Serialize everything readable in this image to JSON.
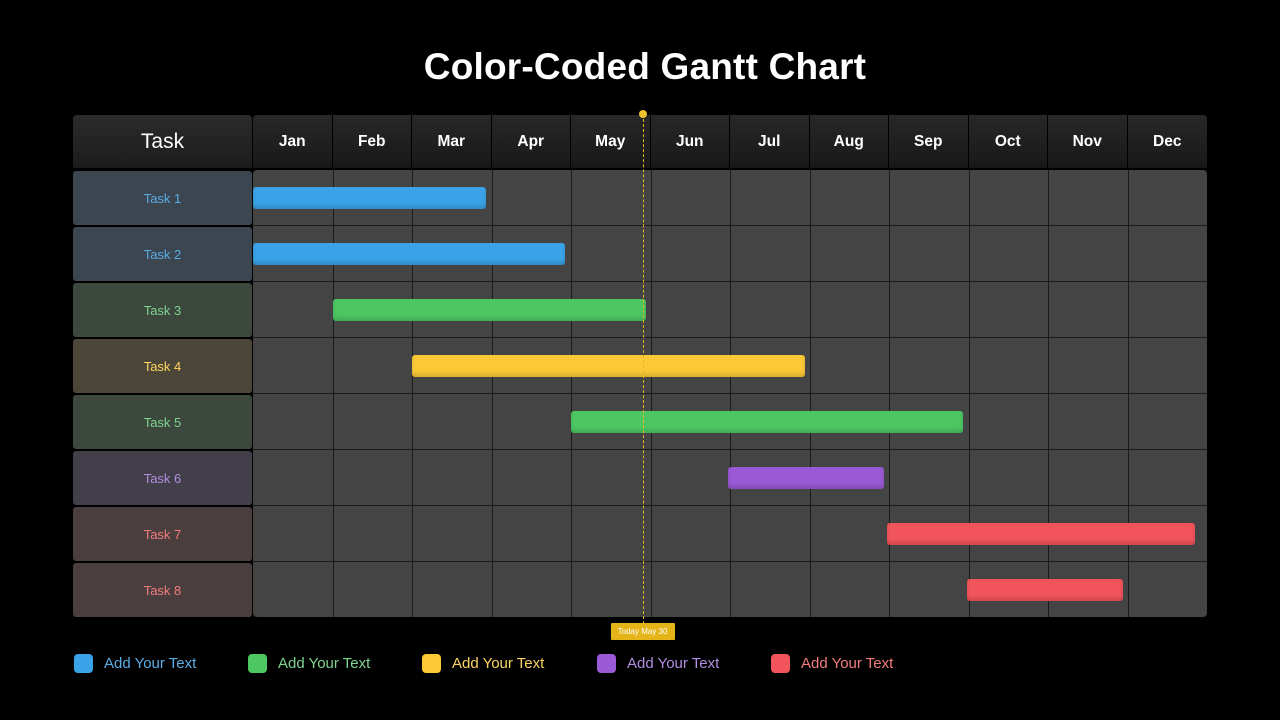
{
  "chart_data": {
    "type": "gantt",
    "title": "Color-Coded Gantt Chart",
    "task_column_header": "Task",
    "months": [
      "Jan",
      "Feb",
      "Mar",
      "Apr",
      "May",
      "Jun",
      "Jul",
      "Aug",
      "Sep",
      "Oct",
      "Nov",
      "Dec"
    ],
    "x_unit": "month index (0 = start of Jan, 12 = end of Dec)",
    "tasks": [
      {
        "name": "Task 1",
        "start": 0.0,
        "end": 2.93,
        "color": "#3aa3e8",
        "text_color": "#5aaee6",
        "label_bg": "#3b4650"
      },
      {
        "name": "Task 2",
        "start": 0.0,
        "end": 3.93,
        "color": "#3aa3e8",
        "text_color": "#5aaee6",
        "label_bg": "#3b4650"
      },
      {
        "name": "Task 3",
        "start": 1.0,
        "end": 4.94,
        "color": "#4cc762",
        "text_color": "#7fd58f",
        "label_bg": "#3c473e"
      },
      {
        "name": "Task 4",
        "start": 2.0,
        "end": 6.94,
        "color": "#fcc936",
        "text_color": "#fcd561",
        "label_bg": "#4c4638"
      },
      {
        "name": "Task 5",
        "start": 4.0,
        "end": 8.93,
        "color": "#4cc762",
        "text_color": "#7fd58f",
        "label_bg": "#3c473e"
      },
      {
        "name": "Task 6",
        "start": 5.98,
        "end": 7.94,
        "color": "#9a5ad6",
        "text_color": "#b38ee0",
        "label_bg": "#423f4b"
      },
      {
        "name": "Task 7",
        "start": 7.98,
        "end": 11.85,
        "color": "#f2545b",
        "text_color": "#f37d7d",
        "label_bg": "#4a3e3e"
      },
      {
        "name": "Task 8",
        "start": 8.98,
        "end": 10.94,
        "color": "#f2545b",
        "text_color": "#f37d7d",
        "label_bg": "#4a3e3e"
      }
    ],
    "today_marker": {
      "label": "Today May 30",
      "value": 4.9,
      "color": "#e4b418"
    },
    "legend": [
      {
        "label": "Add Your Text",
        "color": "#3aa3e8",
        "text_color": "#5aaee6"
      },
      {
        "label": "Add Your Text",
        "color": "#4cc762",
        "text_color": "#7fd58f"
      },
      {
        "label": "Add Your Text",
        "color": "#fcc936",
        "text_color": "#fcd561"
      },
      {
        "label": "Add Your Text",
        "color": "#9a5ad6",
        "text_color": "#b38ee0"
      },
      {
        "label": "Add Your Text",
        "color": "#f2545b",
        "text_color": "#f37d7d"
      }
    ]
  }
}
